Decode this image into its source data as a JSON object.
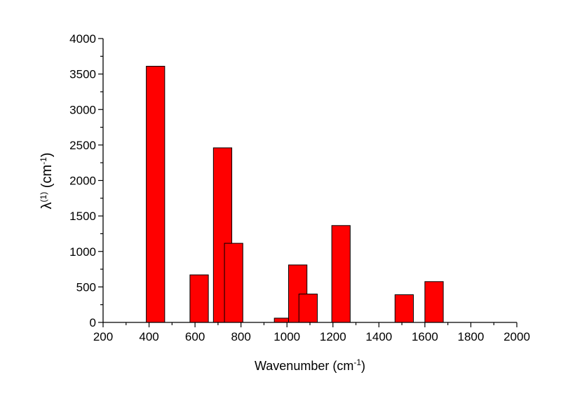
{
  "chart_data": {
    "type": "bar",
    "bar_color": "#ff0000",
    "bar_edge_color": "#000000",
    "bars": [
      {
        "x": 428,
        "y": 3610
      },
      {
        "x": 618,
        "y": 670
      },
      {
        "x": 720,
        "y": 2460
      },
      {
        "x": 768,
        "y": 1115
      },
      {
        "x": 985,
        "y": 60
      },
      {
        "x": 1047,
        "y": 810
      },
      {
        "x": 1092,
        "y": 400
      },
      {
        "x": 1235,
        "y": 1365
      },
      {
        "x": 1510,
        "y": 390
      },
      {
        "x": 1640,
        "y": 575
      }
    ],
    "bar_width_data_units": 80,
    "xlim": [
      200,
      2000
    ],
    "ylim": [
      0,
      4000
    ],
    "x_ticks": [
      "200",
      "400",
      "600",
      "800",
      "1000",
      "1200",
      "1400",
      "1600",
      "1800",
      "2000"
    ],
    "y_ticks": [
      "0",
      "500",
      "1000",
      "1500",
      "2000",
      "2500",
      "3000",
      "3500",
      "4000"
    ],
    "xlabel": {
      "main": "Wavenumber (cm",
      "sup": "-1",
      "tail": ")"
    },
    "ylabel": {
      "symbol": "λ",
      "sup1": "(1)",
      "mid": " (cm",
      "sup2": "-1",
      "tail": ")"
    },
    "title": ""
  }
}
